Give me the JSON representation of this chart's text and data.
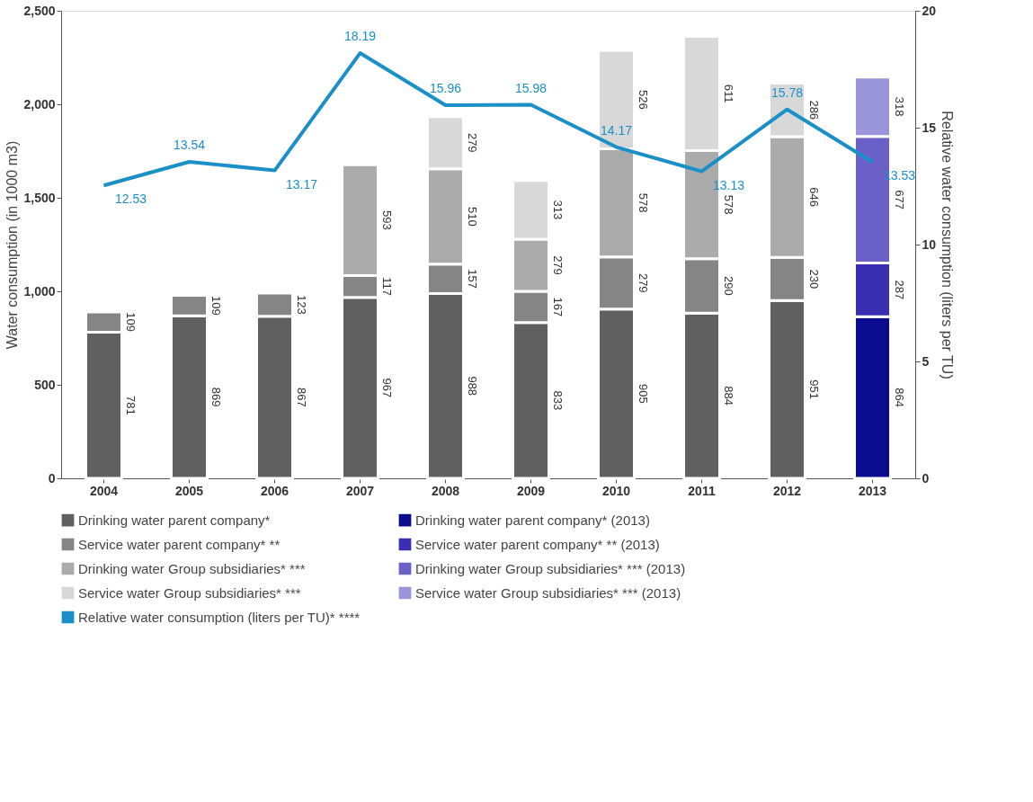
{
  "chart_data": {
    "type": "bar",
    "stacked": true,
    "categories": [
      "2004",
      "2005",
      "2006",
      "2007",
      "2008",
      "2009",
      "2010",
      "2011",
      "2012",
      "2013"
    ],
    "ylabel": "Water consumption (in 1000 m3)",
    "y2label": "Relative water consumption (liters per TU)",
    "ylim": [
      0,
      2500
    ],
    "yticks": [
      0,
      500,
      {
        "value": 1000,
        "label": "1,000"
      },
      {
        "value": 1500,
        "label": "1,500"
      },
      {
        "value": 2000,
        "label": "2,000"
      },
      {
        "value": 2500,
        "label": "2,500"
      }
    ],
    "y2lim": [
      0,
      20
    ],
    "y2ticks": [
      0,
      5,
      10,
      15,
      20
    ],
    "grid": false,
    "legend": "bottom",
    "data_labels": true,
    "marker": "none",
    "line_style": "solid",
    "series": [
      {
        "name": "Drinking water parent company*",
        "color": "#606060",
        "values": [
          781,
          869,
          867,
          967,
          988,
          833,
          905,
          884,
          951,
          null
        ]
      },
      {
        "name": "Service water parent company* **",
        "color": "#858585",
        "values": [
          109,
          109,
          123,
          117,
          157,
          167,
          279,
          290,
          230,
          null
        ]
      },
      {
        "name": "Drinking water Group subsidiaries* ***",
        "color": "#ababab",
        "values": [
          null,
          null,
          null,
          593,
          510,
          279,
          578,
          578,
          646,
          null
        ]
      },
      {
        "name": "Service water Group subsidiaries* ***",
        "color": "#d8d8d8",
        "values": [
          null,
          null,
          null,
          null,
          279,
          313,
          526,
          611,
          286,
          null
        ]
      },
      {
        "name": "Drinking water parent company* (2013)",
        "color": "#0b0b8f",
        "values": [
          null,
          null,
          null,
          null,
          null,
          null,
          null,
          null,
          null,
          864
        ]
      },
      {
        "name": "Service water parent company* ** (2013)",
        "color": "#3a2eb2",
        "values": [
          null,
          null,
          null,
          null,
          null,
          null,
          null,
          null,
          null,
          287
        ]
      },
      {
        "name": "Drinking water Group subsidiaries* *** (2013)",
        "color": "#6a60c8",
        "values": [
          null,
          null,
          null,
          null,
          null,
          null,
          null,
          null,
          null,
          677
        ]
      },
      {
        "name": "Service water Group subsidiaries* *** (2013)",
        "color": "#9a94d8",
        "values": [
          null,
          null,
          null,
          null,
          null,
          null,
          null,
          null,
          null,
          318
        ]
      },
      {
        "name": "Relative water consumption (liters per TU)* ****",
        "color": "#1a8fc8",
        "type": "line",
        "axis": "y2",
        "values": [
          12.53,
          13.54,
          13.17,
          18.19,
          15.96,
          15.98,
          14.17,
          13.13,
          15.78,
          13.53
        ]
      }
    ]
  }
}
